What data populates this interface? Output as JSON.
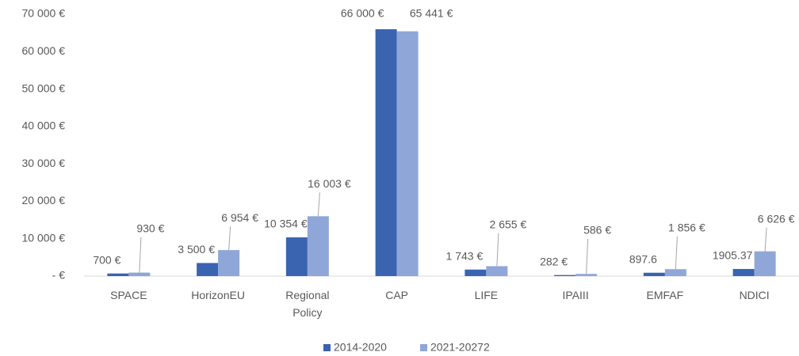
{
  "chart_data": {
    "type": "bar",
    "categories": [
      "SPACE",
      "HorizonEU",
      "Regional Policy",
      "CAP",
      "LIFE",
      "IPAIII",
      "EMFAF",
      "NDICI"
    ],
    "series": [
      {
        "name": "2014-2020",
        "color": "#3a63b0",
        "values": [
          700,
          3500,
          10354,
          66000,
          1743,
          282,
          897.6,
          1905.37
        ],
        "value_labels": [
          "700 €",
          "3 500 €",
          "10 354 €",
          "66 000 €",
          "1 743 €",
          "282 €",
          "897.6",
          "1905.37"
        ]
      },
      {
        "name": "2021-20272",
        "color": "#8fa6d8",
        "values": [
          930,
          6954,
          16003,
          65441,
          2655,
          586,
          1856,
          6626
        ],
        "value_labels": [
          "930 €",
          "6 954 €",
          "16 003 €",
          "65 441 €",
          "2 655 €",
          "586 €",
          "1 856 €",
          "6 626 €"
        ]
      }
    ],
    "ylim": [
      0,
      70000
    ],
    "yticks": [
      {
        "value": 0,
        "label": "-  €"
      },
      {
        "value": 10000,
        "label": "10 000 €"
      },
      {
        "value": 20000,
        "label": "20 000 €"
      },
      {
        "value": 30000,
        "label": "30 000 €"
      },
      {
        "value": 40000,
        "label": "40 000 €"
      },
      {
        "value": 50000,
        "label": "50 000 €"
      },
      {
        "value": 60000,
        "label": "60 000 €"
      },
      {
        "value": 70000,
        "label": "70 000 €"
      }
    ],
    "grid": false,
    "legend": "bottom"
  }
}
